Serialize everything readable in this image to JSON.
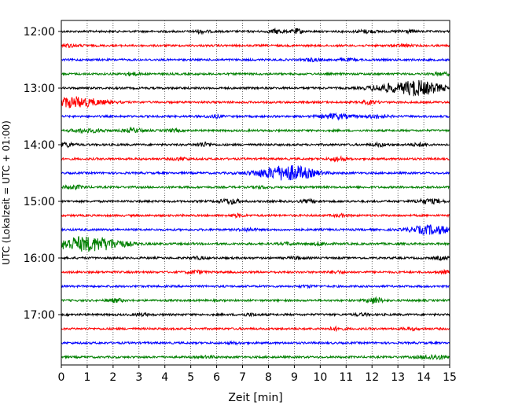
{
  "chart_data": {
    "type": "line",
    "title": "",
    "xlabel": "Zeit  [min]",
    "ylabel": "UTC (Lokalzeit = UTC + 01:00)",
    "xlim": [
      0,
      15
    ],
    "x_ticks": [
      0,
      1,
      2,
      3,
      4,
      5,
      6,
      7,
      8,
      9,
      10,
      11,
      12,
      13,
      14,
      15
    ],
    "x_tick_labels": [
      "0",
      "1",
      "2",
      "3",
      "4",
      "5",
      "6",
      "7",
      "8",
      "9",
      "10",
      "11",
      "12",
      "13",
      "14",
      "15"
    ],
    "y_tick_labels": [
      "12:00",
      "13:00",
      "14:00",
      "15:00",
      "16:00",
      "17:00"
    ],
    "y_ticks_hours": [
      12,
      13,
      14,
      15,
      16,
      17
    ],
    "trace_interval_minutes": 15,
    "first_trace_start": "12:00",
    "vertical_grid": true,
    "grid_style": "dotted",
    "color_cycle": [
      "#000000",
      "#ff0000",
      "#0000ff",
      "#008000"
    ],
    "traces": [
      {
        "start": "12:00",
        "color": "#000000",
        "events": [
          {
            "t": 5.4,
            "amp": 0.5,
            "dur": 0.3
          },
          {
            "t": 8.3,
            "amp": 0.7,
            "dur": 0.3
          },
          {
            "t": 9.1,
            "amp": 0.9,
            "dur": 0.2
          },
          {
            "t": 11.8,
            "amp": 0.5,
            "dur": 0.4
          },
          {
            "t": 13.3,
            "amp": 0.5,
            "dur": 0.3
          }
        ]
      },
      {
        "start": "12:15",
        "color": "#ff0000",
        "events": [
          {
            "t": 0.3,
            "amp": 0.4,
            "dur": 0.5
          },
          {
            "t": 13.2,
            "amp": 0.4,
            "dur": 0.3
          }
        ]
      },
      {
        "start": "12:30",
        "color": "#0000ff",
        "events": [
          {
            "t": 9.7,
            "amp": 0.5,
            "dur": 0.3
          },
          {
            "t": 11.0,
            "amp": 0.4,
            "dur": 0.3
          }
        ]
      },
      {
        "start": "12:45",
        "color": "#008000",
        "events": [
          {
            "t": 2.7,
            "amp": 0.5,
            "dur": 0.3
          },
          {
            "t": 14.7,
            "amp": 0.4,
            "dur": 0.4
          }
        ]
      },
      {
        "start": "13:00",
        "color": "#000000",
        "events": [
          {
            "t": 12.6,
            "amp": 1.4,
            "dur": 0.7
          },
          {
            "t": 13.6,
            "amp": 2.4,
            "dur": 0.5
          },
          {
            "t": 14.3,
            "amp": 1.6,
            "dur": 0.6
          }
        ]
      },
      {
        "start": "13:15",
        "color": "#ff0000",
        "events": [
          {
            "t": 0.5,
            "amp": 2.0,
            "dur": 1.0
          },
          {
            "t": 11.9,
            "amp": 0.6,
            "dur": 0.3
          }
        ]
      },
      {
        "start": "13:30",
        "color": "#0000ff",
        "events": [
          {
            "t": 5.9,
            "amp": 0.5,
            "dur": 0.3
          },
          {
            "t": 10.6,
            "amp": 0.9,
            "dur": 0.6
          },
          {
            "t": 12.2,
            "amp": 0.6,
            "dur": 0.4
          }
        ]
      },
      {
        "start": "13:45",
        "color": "#008000",
        "events": [
          {
            "t": 1.0,
            "amp": 0.6,
            "dur": 0.7
          },
          {
            "t": 2.8,
            "amp": 0.7,
            "dur": 0.4
          },
          {
            "t": 4.3,
            "amp": 0.4,
            "dur": 0.3
          }
        ]
      },
      {
        "start": "14:00",
        "color": "#000000",
        "events": [
          {
            "t": 0.2,
            "amp": 0.8,
            "dur": 0.3
          },
          {
            "t": 5.5,
            "amp": 0.8,
            "dur": 0.3
          },
          {
            "t": 12.3,
            "amp": 0.5,
            "dur": 0.3
          },
          {
            "t": 13.8,
            "amp": 0.5,
            "dur": 0.3
          }
        ]
      },
      {
        "start": "14:15",
        "color": "#ff0000",
        "events": [
          {
            "t": 4.6,
            "amp": 0.5,
            "dur": 0.3
          },
          {
            "t": 10.7,
            "amp": 0.8,
            "dur": 0.3
          }
        ]
      },
      {
        "start": "14:30",
        "color": "#0000ff",
        "events": [
          {
            "t": 7.9,
            "amp": 0.9,
            "dur": 0.8
          },
          {
            "t": 8.9,
            "amp": 2.7,
            "dur": 0.9
          }
        ]
      },
      {
        "start": "14:45",
        "color": "#008000",
        "events": [
          {
            "t": 0.5,
            "amp": 0.6,
            "dur": 0.4
          },
          {
            "t": 7.7,
            "amp": 0.4,
            "dur": 0.3
          }
        ]
      },
      {
        "start": "15:00",
        "color": "#000000",
        "events": [
          {
            "t": 6.5,
            "amp": 0.9,
            "dur": 0.4
          },
          {
            "t": 9.6,
            "amp": 0.5,
            "dur": 0.3
          },
          {
            "t": 14.2,
            "amp": 0.8,
            "dur": 0.5
          }
        ]
      },
      {
        "start": "15:15",
        "color": "#ff0000",
        "events": [
          {
            "t": 6.8,
            "amp": 0.5,
            "dur": 0.3
          },
          {
            "t": 10.8,
            "amp": 0.4,
            "dur": 0.3
          }
        ]
      },
      {
        "start": "15:30",
        "color": "#0000ff",
        "events": [
          {
            "t": 7.2,
            "amp": 0.5,
            "dur": 0.3
          },
          {
            "t": 14.3,
            "amp": 1.7,
            "dur": 0.8
          }
        ]
      },
      {
        "start": "15:45",
        "color": "#008000",
        "events": [
          {
            "t": 0.8,
            "amp": 2.6,
            "dur": 1.2
          },
          {
            "t": 1.9,
            "amp": 0.8,
            "dur": 0.8
          },
          {
            "t": 8.7,
            "amp": 0.4,
            "dur": 0.3
          },
          {
            "t": 10.0,
            "amp": 0.6,
            "dur": 0.3
          }
        ]
      },
      {
        "start": "16:00",
        "color": "#000000",
        "events": [
          {
            "t": 5.3,
            "amp": 0.4,
            "dur": 0.3
          },
          {
            "t": 9.1,
            "amp": 0.4,
            "dur": 0.3
          },
          {
            "t": 14.7,
            "amp": 0.5,
            "dur": 0.3
          }
        ]
      },
      {
        "start": "16:15",
        "color": "#ff0000",
        "events": [
          {
            "t": 5.2,
            "amp": 0.6,
            "dur": 0.3
          },
          {
            "t": 10.6,
            "amp": 0.4,
            "dur": 0.3
          },
          {
            "t": 14.9,
            "amp": 0.5,
            "dur": 0.3
          }
        ]
      },
      {
        "start": "16:30",
        "color": "#0000ff",
        "events": [
          {
            "t": 9.5,
            "amp": 0.3,
            "dur": 0.3
          }
        ]
      },
      {
        "start": "16:45",
        "color": "#008000",
        "events": [
          {
            "t": 2.1,
            "amp": 0.6,
            "dur": 0.3
          },
          {
            "t": 12.1,
            "amp": 1.1,
            "dur": 0.3
          }
        ]
      },
      {
        "start": "17:00",
        "color": "#000000",
        "events": [
          {
            "t": 3.1,
            "amp": 0.4,
            "dur": 0.3
          },
          {
            "t": 7.3,
            "amp": 0.4,
            "dur": 0.3
          },
          {
            "t": 11.6,
            "amp": 0.4,
            "dur": 0.3
          }
        ]
      },
      {
        "start": "17:15",
        "color": "#ff0000",
        "events": [
          {
            "t": 10.6,
            "amp": 0.5,
            "dur": 0.3
          },
          {
            "t": 13.5,
            "amp": 0.4,
            "dur": 0.3
          }
        ]
      },
      {
        "start": "17:30",
        "color": "#0000ff",
        "events": [
          {
            "t": 6.7,
            "amp": 0.3,
            "dur": 0.3
          }
        ]
      },
      {
        "start": "17:45",
        "color": "#008000",
        "events": [
          {
            "t": 5.7,
            "amp": 0.3,
            "dur": 0.3
          },
          {
            "t": 14.4,
            "amp": 0.8,
            "dur": 0.6
          }
        ]
      }
    ]
  }
}
